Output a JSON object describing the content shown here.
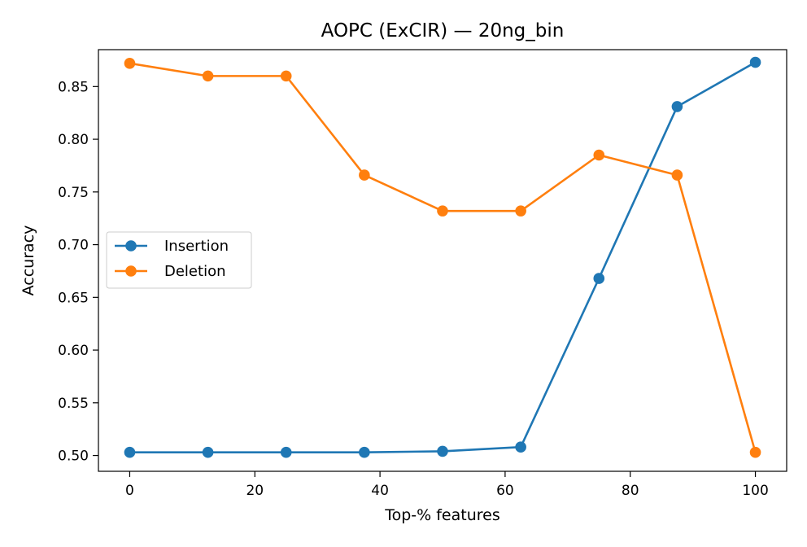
{
  "chart_data": {
    "type": "line",
    "title": "AOPC (ExCIR) — 20ng_bin",
    "xlabel": "Top-% features",
    "ylabel": "Accuracy",
    "xlim": [
      -5,
      105
    ],
    "ylim": [
      0.485,
      0.885
    ],
    "x_ticks": [
      0,
      20,
      40,
      60,
      80,
      100
    ],
    "x_tick_labels": [
      "0",
      "20",
      "40",
      "60",
      "80",
      "100"
    ],
    "y_ticks": [
      0.5,
      0.55,
      0.6,
      0.65,
      0.7,
      0.75,
      0.8,
      0.85
    ],
    "y_tick_labels": [
      "0.50",
      "0.55",
      "0.60",
      "0.65",
      "0.70",
      "0.75",
      "0.80",
      "0.85"
    ],
    "grid": false,
    "legend_position": "center-left",
    "x": [
      0,
      12.5,
      25,
      37.5,
      50,
      62.5,
      75,
      87.5,
      100
    ],
    "series": [
      {
        "name": "Insertion",
        "color": "#1f77b4",
        "marker": "circle",
        "values": [
          0.503,
          0.503,
          0.503,
          0.503,
          0.504,
          0.508,
          0.668,
          0.831,
          0.873
        ]
      },
      {
        "name": "Deletion",
        "color": "#ff7f0e",
        "marker": "circle",
        "values": [
          0.872,
          0.86,
          0.86,
          0.766,
          0.732,
          0.732,
          0.785,
          0.766,
          0.503
        ]
      }
    ]
  }
}
